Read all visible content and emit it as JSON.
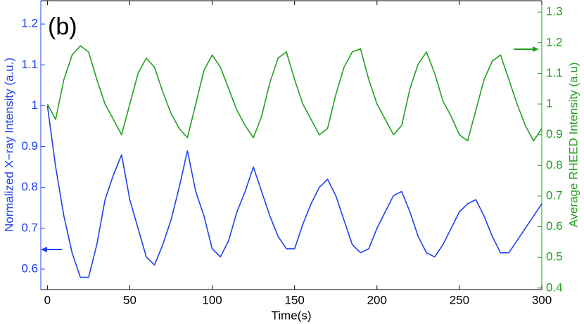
{
  "chart_data": {
    "type": "line",
    "annotation": "(b)",
    "x_label": "Time(s)",
    "y_label": "Normalized X−ray Intensity (a.u.)",
    "y2_label": "Average RHEED Intensity (a.u)",
    "x": [
      0,
      5,
      10,
      15,
      20,
      25,
      30,
      35,
      40,
      45,
      50,
      55,
      60,
      65,
      70,
      75,
      80,
      85,
      90,
      95,
      100,
      105,
      110,
      115,
      120,
      125,
      130,
      135,
      140,
      145,
      150,
      155,
      160,
      165,
      170,
      175,
      180,
      185,
      190,
      195,
      200,
      205,
      210,
      215,
      220,
      225,
      230,
      235,
      240,
      245,
      250,
      255,
      260,
      265,
      270,
      275,
      280,
      285,
      290,
      295,
      300
    ],
    "series": [
      {
        "name": "Normalized X-ray Intensity",
        "color": "#2040f0",
        "axis": "y",
        "values": [
          1.0,
          0.85,
          0.73,
          0.64,
          0.58,
          0.58,
          0.66,
          0.77,
          0.83,
          0.88,
          0.77,
          0.7,
          0.63,
          0.61,
          0.66,
          0.72,
          0.8,
          0.89,
          0.79,
          0.73,
          0.65,
          0.63,
          0.67,
          0.74,
          0.79,
          0.85,
          0.79,
          0.73,
          0.68,
          0.65,
          0.65,
          0.71,
          0.76,
          0.8,
          0.82,
          0.78,
          0.72,
          0.66,
          0.64,
          0.65,
          0.7,
          0.74,
          0.78,
          0.79,
          0.74,
          0.68,
          0.64,
          0.63,
          0.66,
          0.7,
          0.74,
          0.76,
          0.77,
          0.73,
          0.68,
          0.64,
          0.64,
          0.67,
          0.7,
          0.73,
          0.76
        ]
      },
      {
        "name": "Average RHEED Intensity",
        "color": "#22a01e",
        "axis": "y2",
        "values": [
          1.0,
          0.95,
          1.08,
          1.16,
          1.19,
          1.17,
          1.08,
          1.0,
          0.95,
          0.9,
          1.0,
          1.1,
          1.15,
          1.12,
          1.04,
          0.97,
          0.92,
          0.89,
          1.0,
          1.11,
          1.16,
          1.12,
          1.05,
          0.98,
          0.93,
          0.89,
          0.96,
          1.07,
          1.15,
          1.17,
          1.08,
          1.0,
          0.95,
          0.9,
          0.92,
          1.03,
          1.12,
          1.17,
          1.18,
          1.08,
          1.0,
          0.95,
          0.9,
          0.93,
          1.05,
          1.13,
          1.17,
          1.1,
          1.01,
          0.96,
          0.9,
          0.88,
          0.98,
          1.08,
          1.14,
          1.16,
          1.08,
          1.0,
          0.93,
          0.88,
          0.92
        ]
      }
    ],
    "xlim": [
      -4,
      300
    ],
    "xticks": [
      0,
      50,
      100,
      150,
      200,
      250,
      300
    ],
    "ylim": [
      0.55,
      1.257
    ],
    "yticks": [
      0.6,
      0.7,
      0.8,
      0.9,
      1,
      1.1,
      1.2
    ],
    "y2lim": [
      0.395,
      1.337
    ],
    "y2ticks": [
      0.4,
      0.5,
      0.6,
      0.7,
      0.8,
      0.9,
      1,
      1.1,
      1.2,
      1.3
    ]
  }
}
